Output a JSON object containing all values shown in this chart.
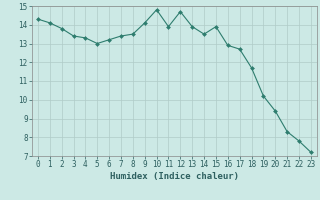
{
  "x": [
    0,
    1,
    2,
    3,
    4,
    5,
    6,
    7,
    8,
    9,
    10,
    11,
    12,
    13,
    14,
    15,
    16,
    17,
    18,
    19,
    20,
    21,
    22,
    23
  ],
  "y": [
    14.3,
    14.1,
    13.8,
    13.4,
    13.3,
    13.0,
    13.2,
    13.4,
    13.5,
    14.1,
    14.8,
    13.9,
    14.7,
    13.9,
    13.5,
    13.9,
    12.9,
    12.7,
    11.7,
    10.2,
    9.4,
    8.3,
    7.8,
    7.2
  ],
  "line_color": "#2e7d6e",
  "marker": "D",
  "marker_size": 2.0,
  "bg_color": "#cce9e5",
  "grid_color": "#b0ccc8",
  "xlabel": "Humidex (Indice chaleur)",
  "xlim": [
    -0.5,
    23.5
  ],
  "ylim": [
    7,
    15
  ],
  "yticks": [
    7,
    8,
    9,
    10,
    11,
    12,
    13,
    14,
    15
  ],
  "xticks": [
    0,
    1,
    2,
    3,
    4,
    5,
    6,
    7,
    8,
    9,
    10,
    11,
    12,
    13,
    14,
    15,
    16,
    17,
    18,
    19,
    20,
    21,
    22,
    23
  ],
  "tick_fontsize": 5.5,
  "xlabel_fontsize": 6.5,
  "linewidth": 0.8
}
